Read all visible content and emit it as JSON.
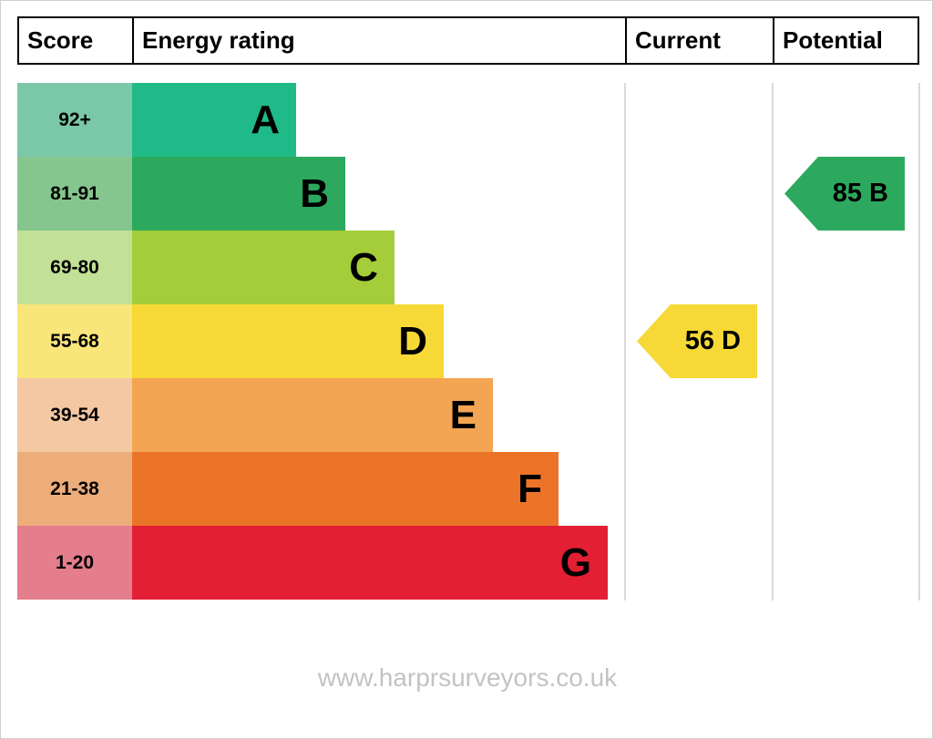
{
  "header": {
    "score": "Score",
    "energy_rating": "Energy rating",
    "current": "Current",
    "potential": "Potential"
  },
  "chart_data": {
    "type": "bar",
    "title": "",
    "categories": [
      "A",
      "B",
      "C",
      "D",
      "E",
      "F",
      "G"
    ],
    "score_ranges": [
      "92+",
      "81-91",
      "69-80",
      "55-68",
      "39-54",
      "21-38",
      "1-20"
    ],
    "band_colors": [
      "#1fba88",
      "#2ca95e",
      "#a5cd39",
      "#f6d936",
      "#f4a553",
      "#ec7428",
      "#e21f34"
    ],
    "score_colors": [
      "#7bc8a9",
      "#84c68d",
      "#c2e096",
      "#f9e67b",
      "#f3c8a3",
      "#edad7a",
      "#e47d8c"
    ],
    "current": {
      "value": 56,
      "band": "D",
      "label": "56 D",
      "color": "#f6d936",
      "text_color": "#000000"
    },
    "potential": {
      "value": 85,
      "band": "B",
      "label": "85 B",
      "color": "#2ca95e",
      "text_color": "#000000"
    }
  },
  "watermark": "www.harprsurveyors.co.uk"
}
